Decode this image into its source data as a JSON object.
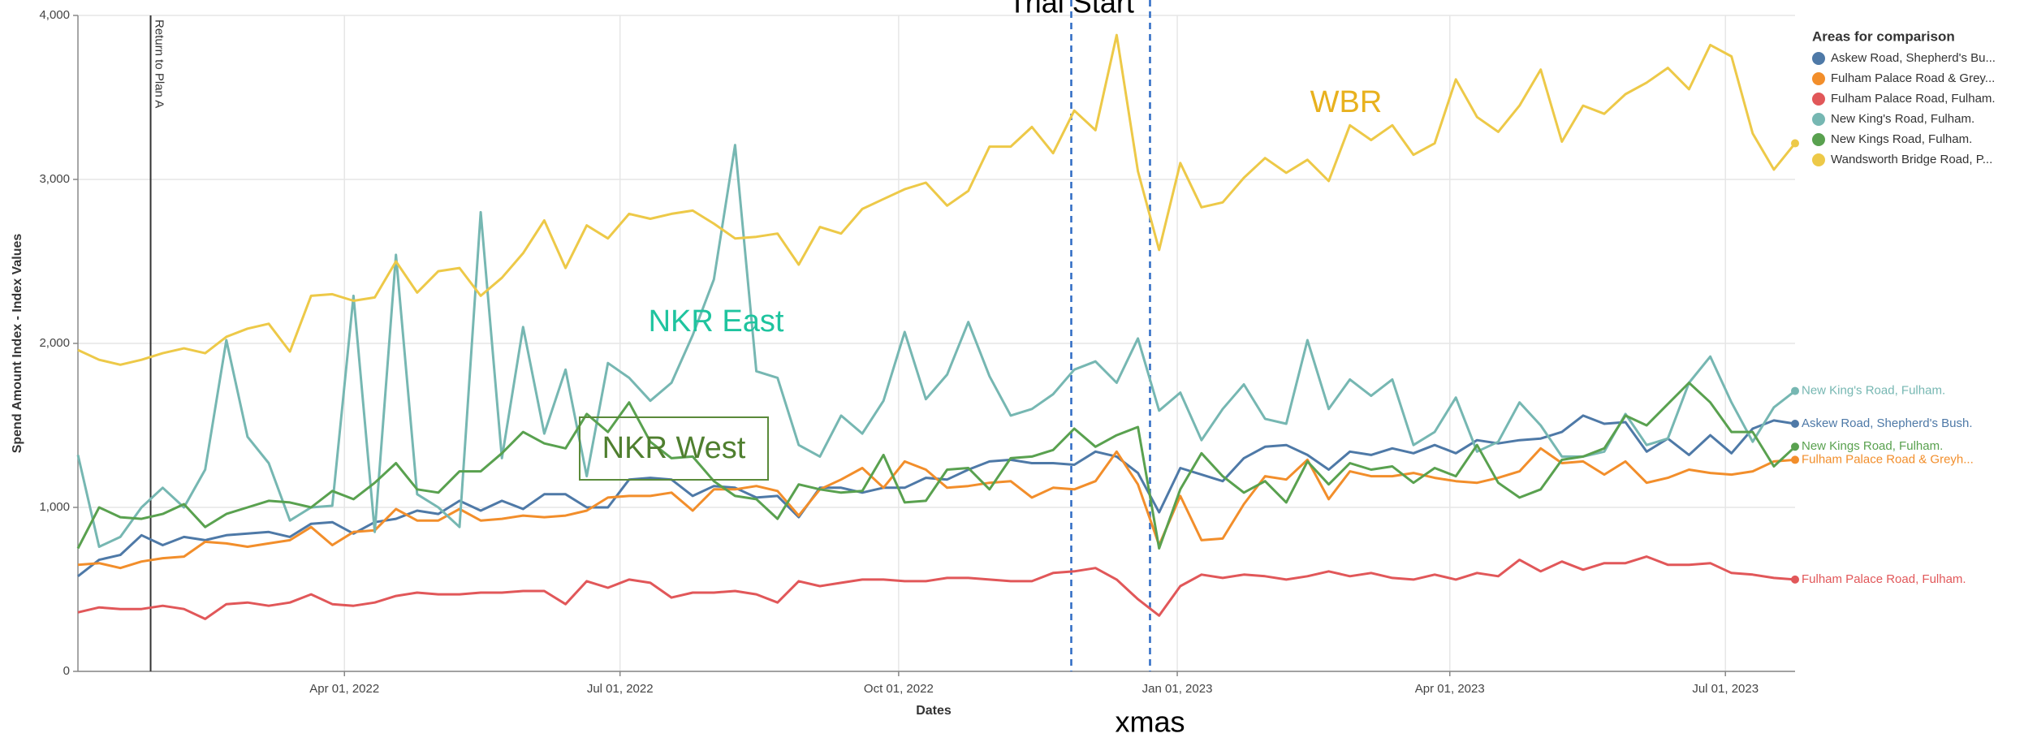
{
  "chart_data": {
    "type": "line",
    "y_label": "Spend Amount Index - Index Values",
    "x_label": "Dates",
    "legend_title": "Areas for comparison",
    "legend": "right",
    "grid": true,
    "ylim": [
      0,
      4000
    ],
    "yticks": [
      0,
      {
        "value": 1000,
        "label": "1,000"
      },
      {
        "value": 2000,
        "label": "2,000"
      },
      {
        "value": 3000,
        "label": "3,000"
      },
      {
        "value": 4000,
        "label": "4,000"
      }
    ],
    "xlim": [
      "2022-01-03",
      "2023-07-24"
    ],
    "xticks": [
      {
        "value": "2022-04-01",
        "label": "Apr 01, 2022"
      },
      {
        "value": "2022-07-01",
        "label": "Jul 01, 2022"
      },
      {
        "value": "2022-10-01",
        "label": "Oct 01, 2022"
      },
      {
        "value": "2023-01-01",
        "label": "Jan 01, 2023"
      },
      {
        "value": "2023-04-01",
        "label": "Apr 01, 2023"
      },
      {
        "value": "2023-07-01",
        "label": "Jul 01, 2023"
      }
    ],
    "vlines": [
      {
        "x": "2022-01-27",
        "label": "Return to Plan A",
        "style": "solid"
      },
      {
        "x": "2022-11-27",
        "label": "Trial Start",
        "style": "dashed"
      },
      {
        "x": "2022-12-23",
        "label": "xmas",
        "style": "dashed"
      }
    ],
    "annotations": [
      "WBR",
      "NKR East",
      "NKR West"
    ],
    "x": [
      "2022-01-03",
      "2022-01-10",
      "2022-01-17",
      "2022-01-24",
      "2022-01-31",
      "2022-02-07",
      "2022-02-14",
      "2022-02-21",
      "2022-02-28",
      "2022-03-07",
      "2022-03-14",
      "2022-03-21",
      "2022-03-28",
      "2022-04-04",
      "2022-04-11",
      "2022-04-18",
      "2022-04-25",
      "2022-05-02",
      "2022-05-09",
      "2022-05-16",
      "2022-05-23",
      "2022-05-30",
      "2022-06-06",
      "2022-06-13",
      "2022-06-20",
      "2022-06-27",
      "2022-07-04",
      "2022-07-11",
      "2022-07-18",
      "2022-07-25",
      "2022-08-01",
      "2022-08-08",
      "2022-08-15",
      "2022-08-22",
      "2022-08-29",
      "2022-09-05",
      "2022-09-12",
      "2022-09-19",
      "2022-09-26",
      "2022-10-03",
      "2022-10-10",
      "2022-10-17",
      "2022-10-24",
      "2022-10-31",
      "2022-11-07",
      "2022-11-14",
      "2022-11-21",
      "2022-11-28",
      "2022-12-05",
      "2022-12-12",
      "2022-12-19",
      "2022-12-26",
      "2023-01-02",
      "2023-01-09",
      "2023-01-16",
      "2023-01-23",
      "2023-01-30",
      "2023-02-06",
      "2023-02-13",
      "2023-02-20",
      "2023-02-27",
      "2023-03-06",
      "2023-03-13",
      "2023-03-20",
      "2023-03-27",
      "2023-04-03",
      "2023-04-10",
      "2023-04-17",
      "2023-04-24",
      "2023-05-01",
      "2023-05-08",
      "2023-05-15",
      "2023-05-22",
      "2023-05-29",
      "2023-06-05",
      "2023-06-12",
      "2023-06-19",
      "2023-06-26",
      "2023-07-03",
      "2023-07-10",
      "2023-07-17",
      "2023-07-24"
    ],
    "series": [
      {
        "name": "Askew Road, Shepherd's Bu...",
        "label": "Askew Road, Shepherd's Bush.",
        "color": "#4e79a7",
        "values": [
          580,
          680,
          710,
          830,
          770,
          820,
          800,
          830,
          840,
          850,
          820,
          900,
          910,
          840,
          910,
          930,
          980,
          960,
          1040,
          980,
          1040,
          990,
          1080,
          1080,
          1000,
          1000,
          1170,
          1180,
          1170,
          1070,
          1130,
          1120,
          1060,
          1070,
          940,
          1120,
          1120,
          1090,
          1120,
          1120,
          1180,
          1170,
          1230,
          1280,
          1290,
          1270,
          1270,
          1260,
          1340,
          1310,
          1210,
          970,
          1240,
          1200,
          1160,
          1300,
          1370,
          1380,
          1320,
          1230,
          1340,
          1320,
          1360,
          1330,
          1380,
          1330,
          1410,
          1390,
          1410,
          1420,
          1460,
          1560,
          1510,
          1520,
          1340,
          1420,
          1320,
          1440,
          1330,
          1480,
          1530,
          1510
        ]
      },
      {
        "name": "Fulham Palace Road & Grey...",
        "label": "Fulham Palace Road & Greyh...",
        "color": "#f28e2b",
        "values": [
          650,
          660,
          630,
          670,
          690,
          700,
          790,
          780,
          760,
          780,
          800,
          880,
          770,
          850,
          860,
          990,
          920,
          920,
          990,
          920,
          930,
          950,
          940,
          950,
          980,
          1060,
          1070,
          1070,
          1090,
          980,
          1110,
          1110,
          1130,
          1100,
          950,
          1110,
          1170,
          1240,
          1120,
          1280,
          1230,
          1120,
          1130,
          1150,
          1160,
          1060,
          1120,
          1110,
          1160,
          1340,
          1140,
          770,
          1070,
          800,
          810,
          1020,
          1190,
          1170,
          1290,
          1050,
          1220,
          1190,
          1190,
          1210,
          1180,
          1160,
          1150,
          1180,
          1220,
          1360,
          1270,
          1280,
          1200,
          1280,
          1150,
          1180,
          1230,
          1210,
          1200,
          1220,
          1280,
          1290
        ]
      },
      {
        "name": "Fulham Palace Road, Fulham.",
        "label": "Fulham Palace Road, Fulham.",
        "color": "#e15759",
        "values": [
          360,
          390,
          380,
          380,
          400,
          380,
          320,
          410,
          420,
          400,
          420,
          470,
          410,
          400,
          420,
          460,
          480,
          470,
          470,
          480,
          480,
          490,
          490,
          410,
          550,
          510,
          560,
          540,
          450,
          480,
          480,
          490,
          470,
          420,
          550,
          520,
          540,
          560,
          560,
          550,
          550,
          570,
          570,
          560,
          550,
          550,
          600,
          610,
          630,
          560,
          440,
          340,
          520,
          590,
          570,
          590,
          580,
          560,
          580,
          610,
          580,
          600,
          570,
          560,
          590,
          560,
          600,
          580,
          680,
          610,
          670,
          620,
          660,
          660,
          700,
          650,
          650,
          660,
          600,
          590,
          570,
          560
        ]
      },
      {
        "name": "New King's Road, Fulham.",
        "label": "New King's Road, Fulham.",
        "color": "#76b7b2",
        "values": [
          1320,
          760,
          820,
          1000,
          1120,
          1000,
          1230,
          2020,
          1430,
          1270,
          920,
          1000,
          1010,
          2290,
          850,
          2540,
          1080,
          1000,
          880,
          2800,
          1300,
          2100,
          1450,
          1840,
          1190,
          1880,
          1790,
          1650,
          1760,
          2050,
          2390,
          3210,
          1830,
          1790,
          1380,
          1310,
          1560,
          1450,
          1650,
          2070,
          1660,
          1810,
          2130,
          1800,
          1560,
          1600,
          1690,
          1840,
          1890,
          1760,
          2030,
          1590,
          1700,
          1410,
          1600,
          1750,
          1540,
          1510,
          2020,
          1600,
          1780,
          1680,
          1780,
          1380,
          1460,
          1670,
          1340,
          1400,
          1640,
          1500,
          1310,
          1310,
          1340,
          1570,
          1380,
          1420,
          1760,
          1920,
          1640,
          1400,
          1610,
          1710
        ]
      },
      {
        "name": "New Kings Road, Fulham.",
        "label": "New Kings Road, Fulham.",
        "color": "#59a14f",
        "values": [
          750,
          1000,
          940,
          930,
          960,
          1020,
          880,
          960,
          1000,
          1040,
          1030,
          1000,
          1100,
          1050,
          1150,
          1270,
          1110,
          1090,
          1220,
          1220,
          1330,
          1460,
          1390,
          1360,
          1570,
          1460,
          1640,
          1400,
          1300,
          1310,
          1160,
          1070,
          1050,
          930,
          1140,
          1110,
          1090,
          1100,
          1320,
          1030,
          1040,
          1230,
          1240,
          1110,
          1300,
          1310,
          1350,
          1480,
          1370,
          1440,
          1490,
          750,
          1110,
          1330,
          1190,
          1090,
          1160,
          1030,
          1280,
          1140,
          1270,
          1230,
          1250,
          1150,
          1240,
          1190,
          1380,
          1150,
          1060,
          1110,
          1290,
          1310,
          1360,
          1560,
          1500,
          1630,
          1760,
          1640,
          1460,
          1460,
          1250,
          1370
        ]
      },
      {
        "name": "Wandsworth Bridge Road, P...",
        "color": "#edc948",
        "values": [
          1960,
          1900,
          1870,
          1900,
          1940,
          1970,
          1940,
          2040,
          2090,
          2120,
          1950,
          2290,
          2300,
          2260,
          2280,
          2500,
          2310,
          2440,
          2460,
          2290,
          2400,
          2550,
          2750,
          2460,
          2720,
          2640,
          2790,
          2760,
          2790,
          2810,
          2730,
          2640,
          2650,
          2670,
          2480,
          2710,
          2670,
          2820,
          2880,
          2940,
          2980,
          2840,
          2930,
          3200,
          3200,
          3320,
          3160,
          3420,
          3300,
          3880,
          3050,
          2570,
          3100,
          2830,
          2860,
          3010,
          3130,
          3040,
          3120,
          2990,
          3330,
          3240,
          3330,
          3150,
          3220,
          3610,
          3380,
          3290,
          3450,
          3670,
          3230,
          3450,
          3400,
          3520,
          3590,
          3680,
          3550,
          3820,
          3750,
          3280,
          3060,
          3220
        ]
      }
    ]
  }
}
